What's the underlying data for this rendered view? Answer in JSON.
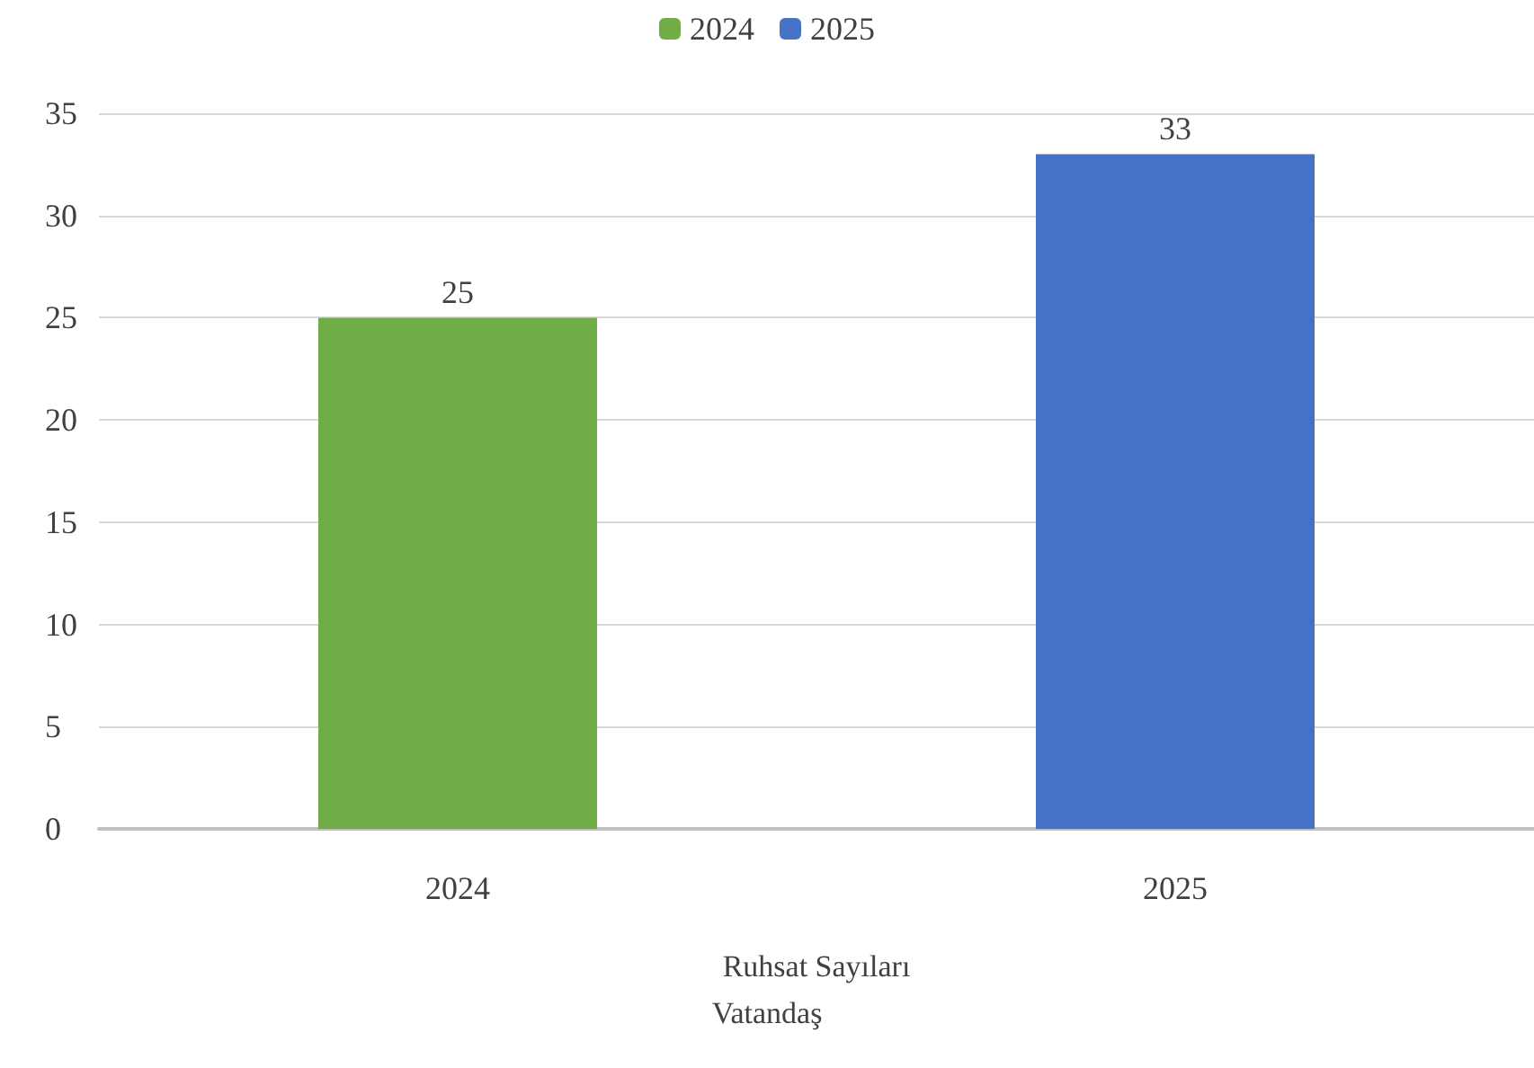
{
  "chart_data": {
    "type": "bar",
    "categories": [
      "2024",
      "2025"
    ],
    "series": [
      {
        "name": "2024",
        "color": "#70ad47",
        "values": [
          25,
          null
        ]
      },
      {
        "name": "2025",
        "color": "#4472c4",
        "values": [
          null,
          33
        ]
      }
    ],
    "xlabel": "Ruhsat Sayıları",
    "annotations": [
      "Vatandaş"
    ],
    "ylim": [
      0,
      35
    ],
    "yticks": [
      0,
      5,
      10,
      15,
      20,
      25,
      30,
      35
    ],
    "grid": "y",
    "legend": "top",
    "data_labels": true
  }
}
